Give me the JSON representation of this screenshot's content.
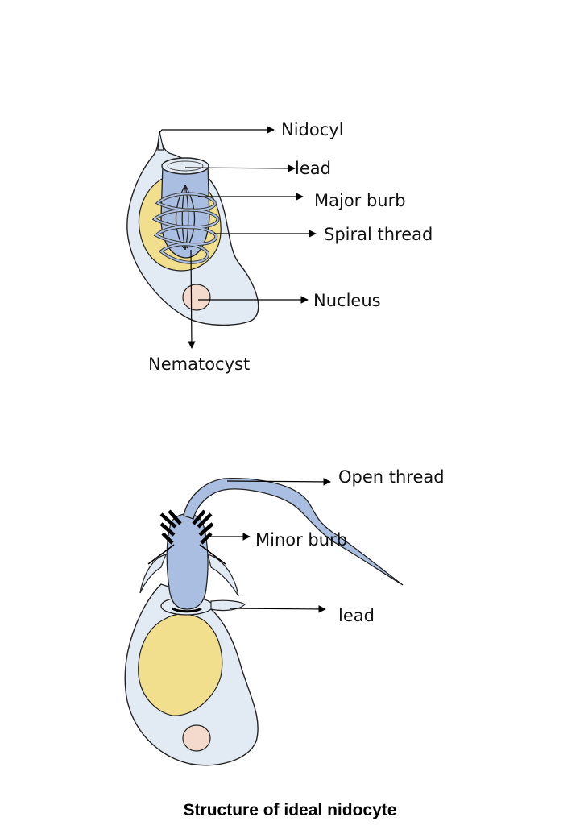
{
  "colors": {
    "cell_fill": "#e2eaf3",
    "cell_stroke": "#222222",
    "capsule_fill": "#f1df8e",
    "nematocyst_fill": "#a9bee0",
    "nucleus_fill": "#f4d9cd",
    "arrow": "#000000"
  },
  "diagram_top": {
    "labels": {
      "nidocyl": "Nidocyl",
      "lead": "lead",
      "major_burb": "Major burb",
      "spiral_thread": "Spiral thread",
      "nucleus": "Nucleus",
      "nematocyst": "Nematocyst"
    }
  },
  "diagram_bottom": {
    "labels": {
      "open_thread": "Open thread",
      "minor_burb": "Minor burb",
      "lead": "lead"
    }
  },
  "caption": "Structure of ideal nidocyte"
}
